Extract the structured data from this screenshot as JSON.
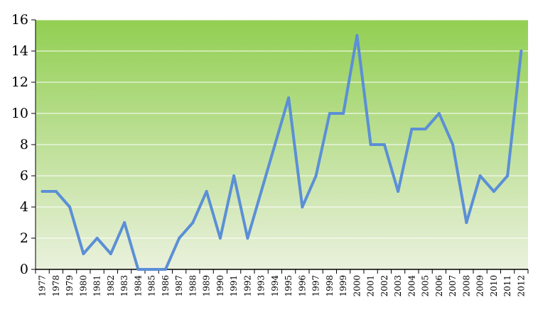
{
  "chart_data": {
    "type": "line",
    "categories": [
      "1977",
      "1978",
      "1979",
      "1980",
      "1981",
      "1982",
      "1983",
      "1984",
      "1985",
      "1986",
      "1987",
      "1988",
      "1989",
      "1990",
      "1991",
      "1992",
      "1993",
      "1994",
      "1995",
      "1996",
      "1997",
      "1998",
      "1999",
      "2000",
      "2001",
      "2002",
      "2003",
      "2004",
      "2005",
      "2006",
      "2007",
      "2008",
      "2009",
      "2010",
      "2011",
      "2012"
    ],
    "series": [
      {
        "values": [
          5,
          5,
          4,
          1,
          2,
          1,
          3,
          0,
          0,
          0,
          2,
          3,
          5,
          2,
          6,
          2,
          5,
          8,
          11,
          4,
          6,
          10,
          10,
          15,
          8,
          8,
          5,
          9,
          9,
          10,
          8,
          3,
          6,
          5,
          6,
          14
        ]
      }
    ],
    "ylim": [
      0,
      16
    ],
    "yticks": [
      0,
      2,
      4,
      6,
      8,
      10,
      12,
      14,
      16
    ],
    "grid": true,
    "legend": "none",
    "colors": {
      "line": "#5b8fd6",
      "plot_bg_top": "#92cf52",
      "plot_bg_bottom": "#eaf1dd",
      "grid": "#ffffff",
      "axis": "#000000"
    }
  }
}
